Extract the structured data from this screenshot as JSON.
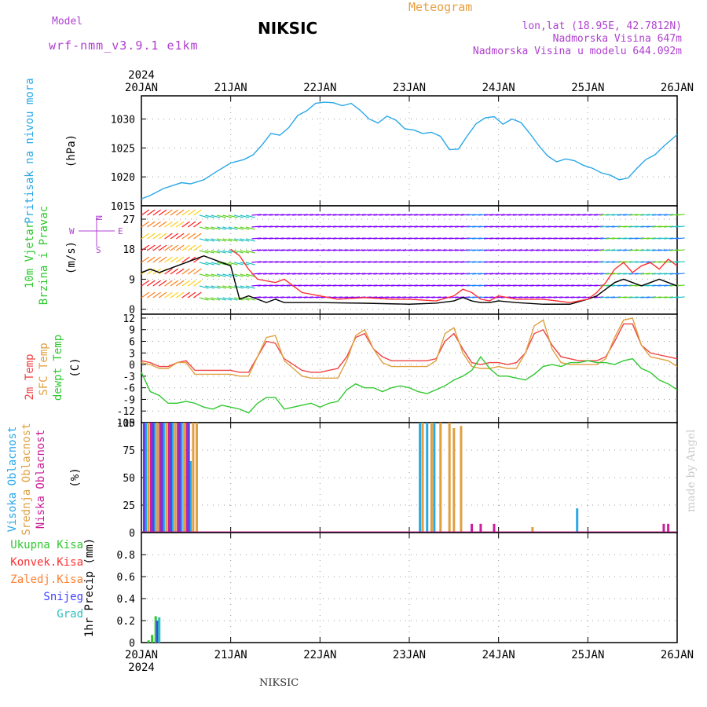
{
  "header": {
    "model_label": "Model",
    "model_name": "wrf-nmm_v3.9.1 e1km",
    "station": "NIKSIC",
    "chart_name": "Meteogram",
    "coords": "lon,lat (18.95E, 42.7812N)",
    "altitude": "Nadmorska Visina 647m",
    "model_altitude": "Nadmorska Visina u modelu 644.092m"
  },
  "footer": {
    "station": "NIKSIC",
    "credit": "made by Angel"
  },
  "axis": {
    "year": "2024",
    "days": [
      "20JAN",
      "21JAN",
      "22JAN",
      "23JAN",
      "24JAN",
      "25JAN",
      "26JAN"
    ]
  },
  "compass": {
    "n": "N",
    "s": "S",
    "w": "W",
    "e": "E"
  },
  "chart_data": [
    {
      "type": "line",
      "title": "",
      "ylabel": "Pritisak na nivou mora",
      "yunit": "(hPa)",
      "ylim": [
        1015,
        1034
      ],
      "yticks": [
        1015,
        1020,
        1025,
        1030
      ],
      "series": [
        {
          "name": "",
          "color": "#29a8e8",
          "x": [
            0,
            0.1,
            0.25,
            0.45,
            0.55,
            0.7,
            0.85,
            1.0,
            1.15,
            1.25,
            1.35,
            1.45,
            1.55,
            1.65,
            1.75,
            1.85,
            1.95,
            2.05,
            2.15,
            2.25,
            2.35,
            2.45,
            2.55,
            2.65,
            2.75,
            2.85,
            2.95,
            3.05,
            3.15,
            3.25,
            3.35,
            3.45,
            3.55,
            3.65,
            3.75,
            3.85,
            3.95,
            4.05,
            4.15,
            4.25,
            4.35,
            4.45,
            4.55,
            4.65,
            4.75,
            4.85,
            4.95,
            5.05,
            5.15,
            5.25,
            5.35,
            5.45,
            5.55,
            5.65,
            5.75,
            5.85,
            6.0
          ],
          "y": [
            1016.2,
            1016.8,
            1018,
            1019,
            1018.8,
            1019.5,
            1021,
            1022.4,
            1023,
            1023.8,
            1025.5,
            1027.5,
            1027.2,
            1028.5,
            1030.6,
            1031.4,
            1032.7,
            1032.9,
            1032.8,
            1032.3,
            1032.7,
            1031.5,
            1030,
            1029.3,
            1030.5,
            1029.8,
            1028.3,
            1028.1,
            1027.5,
            1027.7,
            1027,
            1024.7,
            1024.8,
            1027.1,
            1029.2,
            1030.2,
            1030.4,
            1029.1,
            1030,
            1029.4,
            1027.5,
            1025.4,
            1023.6,
            1022.6,
            1023.1,
            1022.8,
            1022,
            1021.5,
            1020.7,
            1020.3,
            1019.5,
            1019.8,
            1021.5,
            1023,
            1023.8,
            1025.3,
            1027.3
          ]
        }
      ]
    },
    {
      "type": "line",
      "title": "",
      "ylabel": "10m Vjetar",
      "ylabel2": "Brzina i Pravac",
      "yunit": "(m/s)",
      "ylim": [
        -1.5,
        31
      ],
      "yticks": [
        0,
        9,
        18,
        27
      ],
      "series": [
        {
          "name": "",
          "color": "#000000",
          "x": [
            0,
            0.1,
            0.2,
            0.3,
            0.4,
            0.5,
            0.6,
            0.7,
            0.8,
            0.9,
            1.0,
            1.05,
            1.1,
            1.2,
            1.3,
            1.4,
            1.5,
            1.6,
            1.8,
            2.0,
            2.5,
            3.0,
            3.3,
            3.5,
            3.6,
            3.7,
            3.8,
            3.9,
            4.0,
            4.2,
            4.5,
            4.8,
            5.0,
            5.1,
            5.2,
            5.3,
            5.4,
            5.5,
            5.6,
            5.7,
            5.8,
            5.9,
            6.0
          ],
          "y": [
            11,
            12,
            11,
            12,
            13,
            14,
            15,
            16,
            15,
            14,
            13,
            8,
            3,
            4,
            3,
            2,
            3,
            2,
            2,
            2,
            1.8,
            1.5,
            1.8,
            2.5,
            3.5,
            2.5,
            2,
            2,
            2.5,
            2,
            1.5,
            1.5,
            3,
            4,
            6,
            8,
            9,
            8,
            7,
            8,
            9,
            8,
            7
          ]
        },
        {
          "name": "",
          "color": "#ff3030",
          "x": [
            1.0,
            1.1,
            1.2,
            1.3,
            1.5,
            1.6,
            1.8,
            2.0,
            2.2,
            2.5,
            2.8,
            3.0,
            3.3,
            3.5,
            3.6,
            3.7,
            3.8,
            3.9,
            4.0,
            4.2,
            4.5,
            4.8,
            5.0,
            5.1,
            5.2,
            5.3,
            5.4,
            5.5,
            5.6,
            5.7,
            5.8,
            5.9,
            6.0
          ],
          "y": [
            18,
            16,
            12,
            9,
            8,
            9,
            5,
            4,
            3,
            3.5,
            3,
            3,
            2.5,
            4,
            6,
            5,
            3,
            2.5,
            4,
            3,
            3,
            2,
            3,
            5,
            8,
            12,
            14,
            11,
            13,
            14,
            12,
            15,
            13
          ]
        }
      ]
    },
    {
      "type": "line",
      "title": "",
      "ylabel": "2m Temp",
      "ylabel2": "SFC Temp",
      "ylabel3": "dewpt Temp",
      "yunit": "(C)",
      "ylim": [
        -15,
        13
      ],
      "yticks": [
        -15,
        -12,
        -9,
        -6,
        -3,
        0,
        3,
        6,
        9,
        12
      ],
      "series": [
        {
          "name": "",
          "color": "#ee4444",
          "x": [
            0,
            0.1,
            0.2,
            0.3,
            0.4,
            0.5,
            0.6,
            0.7,
            0.8,
            0.9,
            1.0,
            1.1,
            1.2,
            1.3,
            1.4,
            1.5,
            1.6,
            1.7,
            1.8,
            1.9,
            2.0,
            2.1,
            2.2,
            2.3,
            2.4,
            2.5,
            2.6,
            2.7,
            2.8,
            2.9,
            3.0,
            3.1,
            3.2,
            3.3,
            3.4,
            3.5,
            3.6,
            3.7,
            3.8,
            3.9,
            4.0,
            4.1,
            4.2,
            4.3,
            4.4,
            4.5,
            4.6,
            4.7,
            4.8,
            4.9,
            5.0,
            5.1,
            5.2,
            5.3,
            5.4,
            5.5,
            5.6,
            5.7,
            5.8,
            5.9,
            6.0
          ],
          "y": [
            1,
            0.5,
            -0.5,
            -0.5,
            0.5,
            1,
            -1.5,
            -1.5,
            -1.5,
            -1.5,
            -1.5,
            -2,
            -2,
            2,
            6,
            5.5,
            1.5,
            0,
            -1.5,
            -2,
            -2,
            -1.5,
            -1,
            2,
            7,
            8,
            4,
            2,
            1,
            1,
            1,
            1,
            1,
            1.5,
            6,
            8,
            4,
            0.5,
            0,
            0.5,
            0.5,
            0,
            0.5,
            3,
            8,
            9,
            5,
            2,
            1.5,
            1,
            1,
            1,
            2,
            6,
            10.5,
            10.5,
            5,
            3,
            2.5,
            2,
            1.5
          ]
        },
        {
          "name": "",
          "color": "#e0a040",
          "x": [
            0,
            0.1,
            0.2,
            0.3,
            0.4,
            0.5,
            0.6,
            0.7,
            0.8,
            0.9,
            1.0,
            1.1,
            1.2,
            1.3,
            1.4,
            1.5,
            1.6,
            1.7,
            1.8,
            1.9,
            2.0,
            2.1,
            2.2,
            2.3,
            2.4,
            2.5,
            2.6,
            2.7,
            2.8,
            2.9,
            3.0,
            3.1,
            3.2,
            3.3,
            3.4,
            3.5,
            3.6,
            3.7,
            3.8,
            3.9,
            4.0,
            4.1,
            4.2,
            4.3,
            4.4,
            4.5,
            4.6,
            4.7,
            4.8,
            4.9,
            5.0,
            5.1,
            5.2,
            5.3,
            5.4,
            5.5,
            5.6,
            5.7,
            5.8,
            5.9,
            6.0
          ],
          "y": [
            0.5,
            0,
            -1,
            -1,
            0.5,
            0.5,
            -2.5,
            -2.5,
            -2.5,
            -2.5,
            -2.5,
            -3,
            -3,
            2,
            7,
            7.5,
            1,
            -1,
            -3,
            -3.5,
            -3.5,
            -3.5,
            -3.5,
            1,
            7.5,
            9,
            4,
            0.5,
            -0.5,
            -0.5,
            -0.5,
            -0.5,
            -0.5,
            1,
            8,
            9.5,
            3,
            -0.5,
            -1,
            -1,
            -0.5,
            -1,
            -1,
            3,
            10,
            11.5,
            4,
            0.5,
            0,
            0,
            0,
            0,
            1.5,
            7,
            11.5,
            12,
            5,
            2,
            1.5,
            1,
            -0.5
          ]
        },
        {
          "name": "",
          "color": "#30c830",
          "x": [
            0,
            0.1,
            0.2,
            0.3,
            0.4,
            0.5,
            0.6,
            0.7,
            0.8,
            0.9,
            1.0,
            1.1,
            1.2,
            1.3,
            1.4,
            1.5,
            1.6,
            1.7,
            1.8,
            1.9,
            2.0,
            2.1,
            2.2,
            2.3,
            2.4,
            2.5,
            2.6,
            2.7,
            2.8,
            2.9,
            3.0,
            3.1,
            3.2,
            3.3,
            3.4,
            3.5,
            3.6,
            3.7,
            3.8,
            3.9,
            4.0,
            4.1,
            4.2,
            4.3,
            4.4,
            4.5,
            4.6,
            4.7,
            4.8,
            4.9,
            5.0,
            5.1,
            5.2,
            5.3,
            5.4,
            5.5,
            5.6,
            5.7,
            5.8,
            5.9,
            6.0
          ],
          "y": [
            -2,
            -7,
            -8,
            -10,
            -10,
            -9.5,
            -10,
            -11,
            -11.5,
            -10.5,
            -11,
            -11.5,
            -12.5,
            -10,
            -8.5,
            -8.5,
            -11.5,
            -11,
            -10.5,
            -10,
            -11,
            -10,
            -9.5,
            -6.5,
            -5,
            -6,
            -6,
            -7,
            -6,
            -5.5,
            -6,
            -7,
            -7.5,
            -6.5,
            -5.5,
            -4,
            -3,
            -1.5,
            2,
            -1,
            -3,
            -3,
            -3.5,
            -4,
            -2.5,
            -0.5,
            0,
            -0.5,
            0.5,
            0.5,
            1,
            0.5,
            0.5,
            0,
            1,
            1.5,
            -1,
            -2,
            -4,
            -5,
            -6.5
          ]
        }
      ]
    },
    {
      "type": "bar",
      "title": "",
      "ylabel": "Visoka Oblacnost",
      "ylabel2": "Srednja Oblacnost",
      "ylabel3": "Niska Oblacnost",
      "yunit": "(%)",
      "ylim": [
        0,
        100
      ],
      "yticks": [
        0,
        25,
        50,
        75,
        100
      ],
      "series": [
        {
          "name": "",
          "color": "#29a8e8",
          "x": [
            0.05,
            0.15,
            0.25,
            0.35,
            0.45,
            0.55,
            3.12,
            3.2,
            3.28,
            4.88
          ],
          "values": [
            100,
            100,
            100,
            100,
            100,
            65,
            100,
            100,
            100,
            22
          ]
        },
        {
          "name": "",
          "color": "#e0a040",
          "x": [
            0.08,
            0.18,
            0.28,
            0.38,
            0.48,
            0.58,
            0.62,
            3.15,
            3.25,
            3.35,
            3.45,
            3.5,
            3.58,
            4.38
          ],
          "values": [
            100,
            100,
            100,
            100,
            100,
            100,
            100,
            100,
            100,
            100,
            100,
            95,
            97,
            5
          ]
        },
        {
          "name": "",
          "color": "#cc2099",
          "x": [
            0.11,
            0.21,
            0.31,
            0.41,
            0.51,
            3.7,
            3.8,
            3.95,
            5.85,
            5.9
          ],
          "values": [
            100,
            100,
            100,
            100,
            100,
            8,
            8,
            8,
            8,
            8
          ]
        },
        {
          "name": "",
          "color": "#6040e0",
          "x": [
            0.03,
            0.13,
            0.23,
            0.33,
            0.43,
            0.53
          ],
          "values": [
            100,
            100,
            100,
            100,
            100,
            100
          ]
        }
      ]
    },
    {
      "type": "bar",
      "title": "",
      "ylabel": "1hr Precip",
      "yunit": "(mm)",
      "ylim": [
        0,
        1
      ],
      "yticks": [
        0,
        0.2,
        0.4,
        0.6,
        0.8
      ],
      "legend": [
        "Ukupna Kisa",
        "Konvek.Kisa",
        "Zaledj.Kisa",
        "Snijeg",
        "Grad"
      ],
      "legend_colors": [
        "#30c830",
        "#ff3030",
        "#ff8030",
        "#4040ff",
        "#30c0c0"
      ],
      "series": [
        {
          "name": "Ukupna Kisa",
          "color": "#30c830",
          "x": [
            0.08,
            0.12,
            0.16
          ],
          "values": [
            0.02,
            0.07,
            0.24
          ]
        },
        {
          "name": "Snijeg",
          "color": "#4040ff",
          "x": [
            0.18
          ],
          "values": [
            0.2
          ]
        },
        {
          "name": "Grad",
          "color": "#30c0c0",
          "x": [
            0.2
          ],
          "values": [
            0.23
          ]
        }
      ]
    }
  ]
}
